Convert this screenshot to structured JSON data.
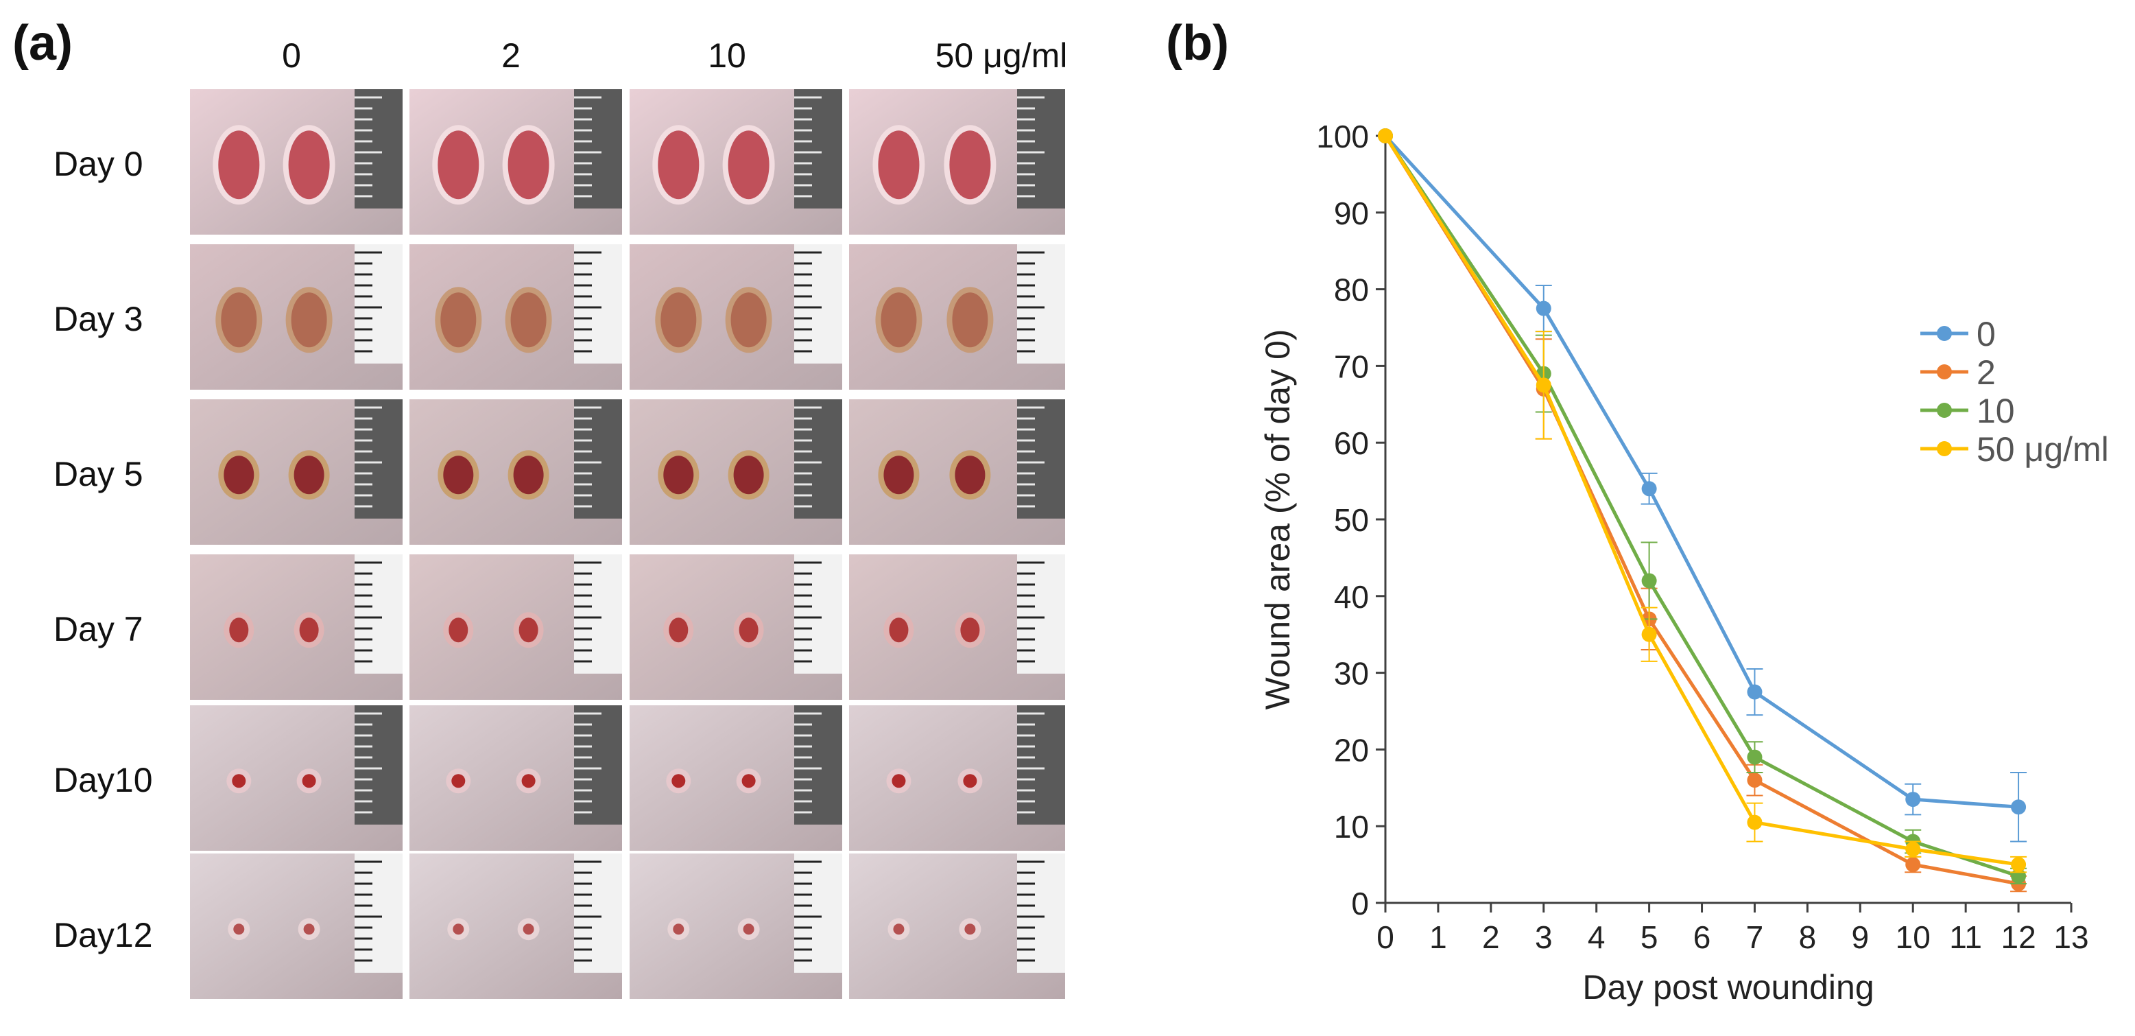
{
  "panel_a": {
    "label": "(a)",
    "columns": [
      "0",
      "2",
      "10",
      "50 μg/ml"
    ],
    "rows": [
      "Day 0",
      "Day 3",
      "Day 5",
      "Day 7",
      "Day10",
      "Day12"
    ]
  },
  "panel_b": {
    "label": "(b)"
  },
  "colors": {
    "s0": "#5B9BD5",
    "s2": "#ED7D31",
    "s10": "#70AD47",
    "s50": "#FFC000",
    "axis": "#404040"
  },
  "chart_data": {
    "type": "line",
    "title": "",
    "xlabel": "Day post wounding",
    "ylabel": "Wound area (% of day 0)",
    "xlim": [
      0,
      13
    ],
    "ylim": [
      0,
      100
    ],
    "xticks": [
      0,
      1,
      2,
      3,
      4,
      5,
      6,
      7,
      8,
      9,
      10,
      11,
      12,
      13
    ],
    "yticks": [
      0,
      10,
      20,
      30,
      40,
      50,
      60,
      70,
      80,
      90,
      100
    ],
    "x": [
      0,
      3,
      5,
      7,
      10,
      12
    ],
    "legend_position": "right",
    "series": [
      {
        "name": "0",
        "values": [
          100,
          77.5,
          54,
          27.5,
          13.5,
          12.5
        ],
        "errors": [
          0,
          3,
          2,
          3,
          2,
          4.5
        ]
      },
      {
        "name": "2",
        "values": [
          100,
          67,
          37,
          16,
          5,
          2.5
        ],
        "errors": [
          0,
          6.5,
          4,
          2,
          1,
          1
        ]
      },
      {
        "name": "10",
        "values": [
          100,
          69,
          42,
          19,
          8,
          3.5
        ],
        "errors": [
          0,
          5,
          5,
          2,
          1.5,
          1
        ]
      },
      {
        "name": "50 μg/ml",
        "values": [
          100,
          67.5,
          35,
          10.5,
          7,
          5
        ],
        "errors": [
          0,
          7,
          3.5,
          2.5,
          1,
          1
        ]
      }
    ]
  }
}
